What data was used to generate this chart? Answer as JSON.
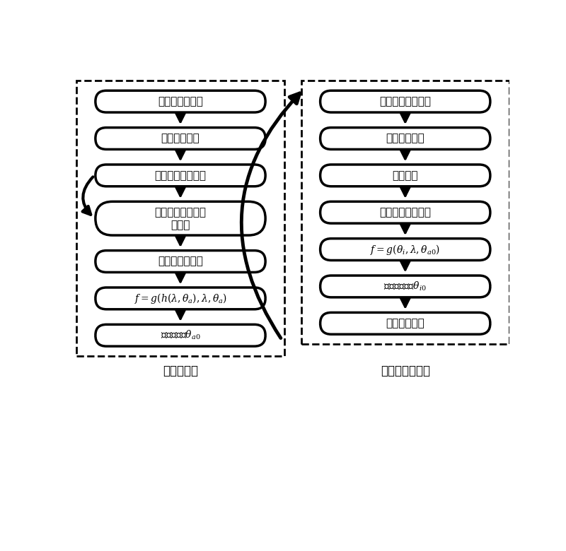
{
  "left_label": "求解离轴角",
  "right_label": "求光矢量入射角",
  "left_box_texts": [
    "单色仪出射波长",
    "调整光路部分",
    "改变入射光束角度",
    "扫描频率使衍射光\n强最大",
    "选取最低频率值",
    "MATH_LEFT_6",
    "MATH_LEFT_7"
  ],
  "right_box_texts": [
    "固定入射光束角度",
    "调整光路部分",
    "扫描频率",
    "记录波长和频率值",
    "MATH_RIGHT_5",
    "MATH_RIGHT_6",
    "调谐关系确立"
  ],
  "bg_color": "#ffffff",
  "box_edge_color": "#000000",
  "dash_color": "#000000",
  "arrow_color": "#000000"
}
